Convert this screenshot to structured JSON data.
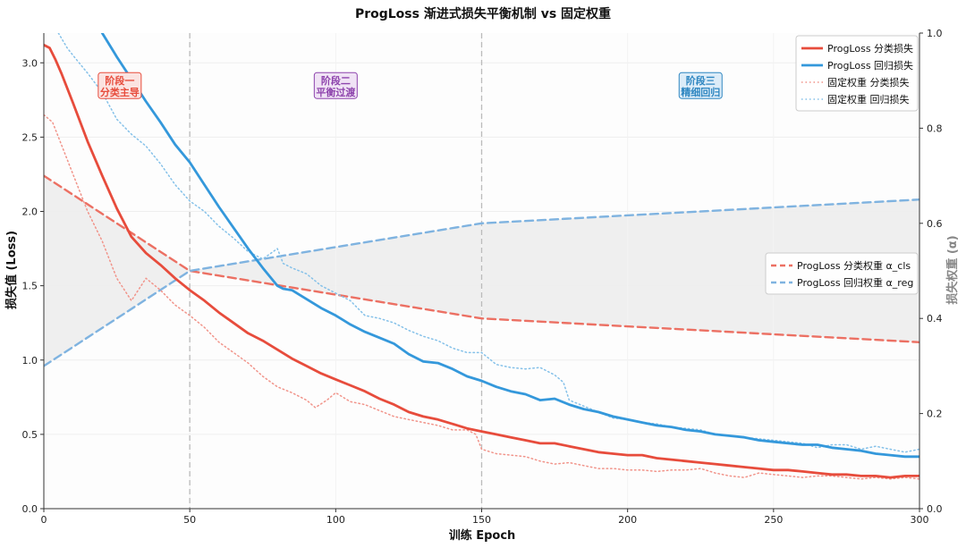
{
  "chart_data": {
    "type": "line",
    "title": "ProgLoss 渐进式损失平衡机制 vs 固定权重",
    "xlabel": "训练 Epoch",
    "ylabel": "损失值 (Loss)",
    "y2label": "损失权重 (α)",
    "xlim": [
      0,
      300
    ],
    "ylim": [
      0,
      3.2
    ],
    "y2lim": [
      0,
      1.0
    ],
    "x_ticks": [
      0,
      50,
      100,
      150,
      200,
      250,
      300
    ],
    "y_ticks": [
      "0.0",
      "0.5",
      "1.0",
      "1.5",
      "2.0",
      "2.5",
      "3.0"
    ],
    "y2_ticks": [
      "0.0",
      "0.2",
      "0.4",
      "0.6",
      "0.8",
      "1.0"
    ],
    "phase_lines": [
      50,
      150
    ],
    "phases": [
      {
        "line1": "阶段一",
        "line2": "分类主导",
        "x": 26,
        "y": 2.85,
        "color": "#e74c3c",
        "bg": "#fbe3e1"
      },
      {
        "line1": "阶段二",
        "line2": "平衡过渡",
        "x": 100,
        "y": 2.85,
        "color": "#8e44ad",
        "bg": "#f0e3f5"
      },
      {
        "line1": "阶段三",
        "line2": "精细回归",
        "x": 225,
        "y": 2.85,
        "color": "#2e86c1",
        "bg": "#dcecf8"
      }
    ],
    "series": [
      {
        "name": "ProgLoss 分类损失",
        "axis": "left",
        "style": "solid",
        "color": "#e74c3c",
        "x": [
          0,
          2,
          4,
          6,
          10,
          15,
          20,
          25,
          30,
          35,
          40,
          45,
          50,
          55,
          60,
          65,
          70,
          75,
          80,
          85,
          90,
          95,
          100,
          105,
          110,
          115,
          120,
          125,
          130,
          135,
          140,
          145,
          150,
          155,
          160,
          165,
          170,
          175,
          180,
          185,
          190,
          195,
          200,
          205,
          210,
          215,
          220,
          225,
          230,
          235,
          240,
          245,
          250,
          255,
          260,
          265,
          270,
          275,
          280,
          285,
          290,
          295,
          300
        ],
        "y": [
          3.12,
          3.1,
          3.02,
          2.93,
          2.73,
          2.47,
          2.24,
          2.02,
          1.83,
          1.72,
          1.64,
          1.55,
          1.47,
          1.4,
          1.32,
          1.25,
          1.18,
          1.13,
          1.07,
          1.01,
          0.96,
          0.91,
          0.87,
          0.83,
          0.79,
          0.74,
          0.7,
          0.65,
          0.62,
          0.6,
          0.57,
          0.54,
          0.52,
          0.5,
          0.48,
          0.46,
          0.44,
          0.44,
          0.42,
          0.4,
          0.38,
          0.37,
          0.36,
          0.36,
          0.34,
          0.33,
          0.32,
          0.31,
          0.3,
          0.29,
          0.28,
          0.27,
          0.26,
          0.26,
          0.25,
          0.24,
          0.23,
          0.23,
          0.22,
          0.22,
          0.21,
          0.22,
          0.22
        ]
      },
      {
        "name": "ProgLoss 回归损失",
        "axis": "left",
        "style": "solid",
        "color": "#3498db",
        "x": [
          20,
          25,
          30,
          35,
          40,
          45,
          50,
          55,
          60,
          65,
          70,
          75,
          80,
          82,
          85,
          90,
          95,
          100,
          105,
          110,
          115,
          120,
          125,
          130,
          135,
          140,
          145,
          150,
          155,
          160,
          165,
          170,
          175,
          180,
          185,
          190,
          195,
          200,
          205,
          210,
          215,
          220,
          225,
          230,
          235,
          240,
          245,
          250,
          255,
          260,
          265,
          270,
          275,
          280,
          285,
          290,
          295,
          300
        ],
        "y": [
          3.2,
          3.04,
          2.89,
          2.74,
          2.6,
          2.45,
          2.33,
          2.18,
          2.03,
          1.89,
          1.75,
          1.62,
          1.5,
          1.48,
          1.47,
          1.41,
          1.35,
          1.3,
          1.24,
          1.19,
          1.15,
          1.11,
          1.04,
          0.99,
          0.98,
          0.94,
          0.89,
          0.86,
          0.82,
          0.79,
          0.77,
          0.73,
          0.74,
          0.7,
          0.67,
          0.65,
          0.62,
          0.6,
          0.58,
          0.56,
          0.55,
          0.53,
          0.52,
          0.5,
          0.49,
          0.48,
          0.46,
          0.45,
          0.44,
          0.43,
          0.43,
          0.41,
          0.4,
          0.39,
          0.37,
          0.36,
          0.35,
          0.35
        ]
      },
      {
        "name": "固定权重 分类损失",
        "axis": "left",
        "style": "dotted",
        "color": "#f1948a",
        "x": [
          0,
          3,
          6,
          10,
          15,
          20,
          25,
          30,
          35,
          40,
          45,
          50,
          55,
          60,
          65,
          70,
          75,
          80,
          85,
          90,
          93,
          97,
          100,
          105,
          110,
          115,
          120,
          125,
          130,
          135,
          140,
          145,
          148,
          150,
          155,
          160,
          165,
          170,
          175,
          180,
          185,
          190,
          195,
          200,
          205,
          210,
          215,
          220,
          225,
          230,
          235,
          240,
          245,
          250,
          255,
          260,
          265,
          270,
          275,
          280,
          285,
          290,
          295,
          300
        ],
        "y": [
          2.65,
          2.6,
          2.45,
          2.25,
          2.0,
          1.8,
          1.55,
          1.4,
          1.55,
          1.47,
          1.37,
          1.3,
          1.22,
          1.12,
          1.05,
          0.98,
          0.89,
          0.82,
          0.78,
          0.73,
          0.68,
          0.73,
          0.78,
          0.72,
          0.7,
          0.66,
          0.62,
          0.6,
          0.58,
          0.56,
          0.53,
          0.53,
          0.5,
          0.4,
          0.37,
          0.36,
          0.35,
          0.32,
          0.3,
          0.31,
          0.29,
          0.27,
          0.27,
          0.26,
          0.26,
          0.25,
          0.26,
          0.26,
          0.27,
          0.24,
          0.22,
          0.21,
          0.24,
          0.23,
          0.22,
          0.21,
          0.22,
          0.22,
          0.21,
          0.2,
          0.21,
          0.2,
          0.21,
          0.2
        ]
      },
      {
        "name": "固定权重 回归损失",
        "axis": "left",
        "style": "dotted",
        "color": "#85c1e9",
        "x": [
          5,
          8,
          10,
          15,
          20,
          25,
          30,
          35,
          40,
          45,
          50,
          55,
          60,
          65,
          70,
          75,
          80,
          82,
          85,
          90,
          95,
          100,
          105,
          110,
          115,
          120,
          125,
          130,
          135,
          140,
          145,
          150,
          155,
          160,
          165,
          170,
          175,
          178,
          180,
          185,
          190,
          195,
          200,
          205,
          210,
          215,
          220,
          225,
          230,
          235,
          240,
          245,
          250,
          255,
          260,
          265,
          270,
          275,
          280,
          285,
          290,
          295,
          300
        ],
        "y": [
          3.2,
          3.1,
          3.05,
          2.93,
          2.8,
          2.62,
          2.52,
          2.44,
          2.32,
          2.18,
          2.07,
          2.0,
          1.9,
          1.82,
          1.73,
          1.68,
          1.75,
          1.65,
          1.62,
          1.58,
          1.5,
          1.45,
          1.4,
          1.3,
          1.28,
          1.25,
          1.2,
          1.16,
          1.13,
          1.08,
          1.05,
          1.05,
          0.97,
          0.95,
          0.94,
          0.95,
          0.9,
          0.85,
          0.73,
          0.69,
          0.65,
          0.61,
          0.6,
          0.58,
          0.57,
          0.55,
          0.54,
          0.53,
          0.5,
          0.49,
          0.48,
          0.47,
          0.46,
          0.45,
          0.44,
          0.41,
          0.43,
          0.43,
          0.4,
          0.42,
          0.4,
          0.38,
          0.4
        ]
      },
      {
        "name": "ProgLoss 分类权重 α_cls",
        "axis": "right",
        "style": "dashed",
        "color": "#ec7063",
        "x": [
          0,
          50,
          150,
          300
        ],
        "y": [
          0.7,
          0.5,
          0.4,
          0.35
        ]
      },
      {
        "name": "ProgLoss 回归权重 α_reg",
        "axis": "right",
        "style": "dashed",
        "color": "#7fb3e0",
        "x": [
          0,
          50,
          150,
          300
        ],
        "y": [
          0.3,
          0.5,
          0.6,
          0.65
        ]
      }
    ],
    "legend_upper": {
      "position": "top-right",
      "items": [
        0,
        1,
        2,
        3
      ]
    },
    "legend_middle": {
      "position": "center-right",
      "items": [
        4,
        5
      ]
    }
  }
}
